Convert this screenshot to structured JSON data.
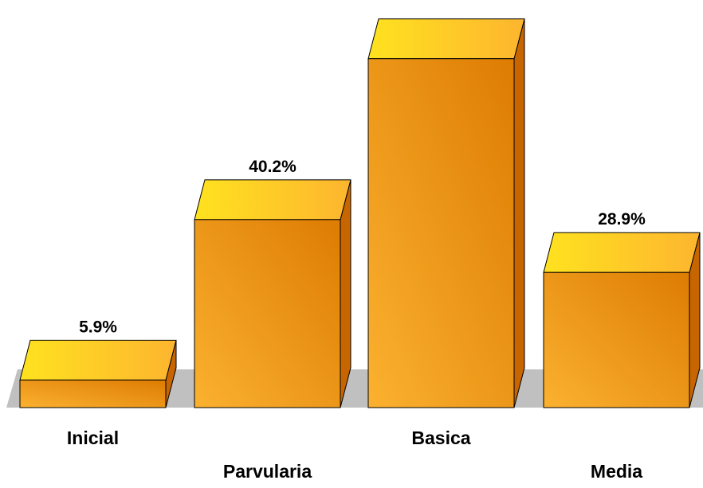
{
  "chart_data": {
    "type": "bar",
    "categories": [
      "Inicial",
      "Parvularia",
      "Basica",
      "Media"
    ],
    "values": [
      5.9,
      40.2,
      74.6,
      28.9
    ],
    "value_labels": [
      "5.9%",
      "40.2%",
      "",
      "28.9%"
    ],
    "ylim": [
      0,
      80
    ],
    "grid": false,
    "legend": "none",
    "title": "",
    "xlabel": "",
    "ylabel": ""
  },
  "colors": {
    "bar_front_light": "#fbb12f",
    "bar_front_dark": "#dd7c02",
    "bar_top_light": "#ffe21f",
    "bar_top_dark": "#fdb52f",
    "bar_side": "#c76600",
    "floor": "#c0c0c0",
    "outline": "#000000"
  }
}
